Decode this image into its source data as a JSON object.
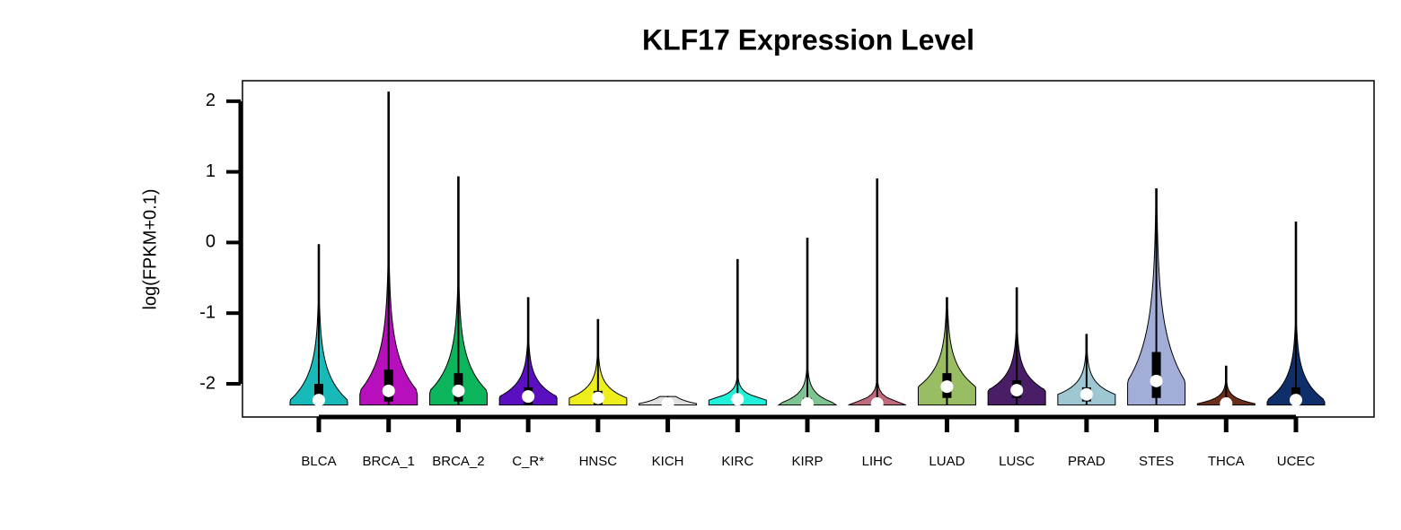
{
  "chart_data": {
    "type": "violin",
    "title": "KLF17 Expression Level",
    "y_label": "log(FPKM+0.1)",
    "ylim": [
      -2.47,
      2.29
    ],
    "yticks": [
      -2,
      -1,
      0,
      1,
      2
    ],
    "categories": [
      "BLCA",
      "BRCA_1",
      "BRCA_2",
      "C_R*",
      "HNSC",
      "KICH",
      "KIRC",
      "KIRP",
      "LIHC",
      "LUAD",
      "LUSC",
      "PRAD",
      "STES",
      "THCA",
      "UCEC"
    ],
    "colors": [
      "#17b9b9",
      "#b80fbc",
      "#0cb55c",
      "#5a10c0",
      "#eeee1c",
      "#e0e0e0",
      "#22f0da",
      "#7fc490",
      "#c06b7c",
      "#98bd62",
      "#4a1e66",
      "#9ec7d3",
      "#a2aed8",
      "#6b2e1a",
      "#0f2f6b"
    ],
    "max": [
      -0.03,
      2.13,
      0.93,
      -0.78,
      -1.09,
      -2.18,
      -0.24,
      0.06,
      0.9,
      -0.78,
      -0.64,
      -1.3,
      0.76,
      -1.75,
      0.29
    ],
    "q3": [
      -2.0,
      -1.8,
      -1.85,
      -2.05,
      -2.1,
      -2.25,
      -2.18,
      -2.2,
      -2.25,
      -1.85,
      -1.95,
      -2.05,
      -1.55,
      -2.25,
      -2.05
    ],
    "median": [
      -2.23,
      -2.1,
      -2.1,
      -2.18,
      -2.2,
      -2.28,
      -2.22,
      -2.28,
      -2.28,
      -2.04,
      -2.09,
      -2.15,
      -1.96,
      -2.28,
      -2.23
    ],
    "q1": [
      -2.25,
      -2.25,
      -2.25,
      -2.3,
      -2.3,
      -2.3,
      -2.3,
      -2.3,
      -2.3,
      -2.2,
      -2.2,
      -2.25,
      -2.2,
      -2.3,
      -2.3
    ],
    "min": [
      -2.3,
      -2.3,
      -2.3,
      -2.3,
      -2.3,
      -2.3,
      -2.3,
      -2.3,
      -2.3,
      -2.3,
      -2.3,
      -2.3,
      -2.3,
      -2.3,
      -2.3
    ]
  }
}
